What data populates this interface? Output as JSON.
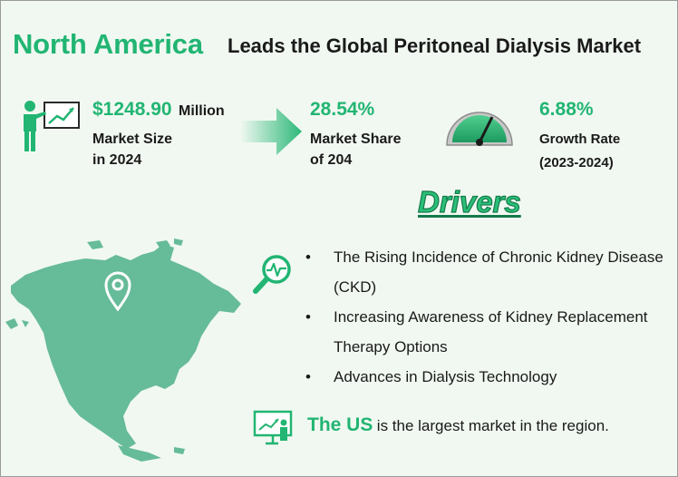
{
  "title": {
    "highlight": "North America",
    "rest": "Leads the Global Peritoneal Dialysis Market"
  },
  "stats": {
    "market_size": {
      "value": "$1248.90",
      "unit": "Million",
      "label_line1": "Market Size",
      "label_line2": "in 2024"
    },
    "market_share": {
      "value": "28.54%",
      "label_line1": "Market Share",
      "label_line2": "of 204"
    },
    "growth_rate": {
      "value": "6.88%",
      "label_line1": "Growth Rate",
      "label_line2": "(2023-2024)"
    }
  },
  "drivers": {
    "heading": "Drivers",
    "items": [
      {
        "line1": "The Rising Incidence of Chronic Kidney Disease",
        "line2": "(CKD)"
      },
      {
        "line1": "Increasing Awareness of Kidney Replacement",
        "line2": "Therapy Options"
      },
      {
        "line1": "Advances in Dialysis Technology",
        "line2": ""
      }
    ]
  },
  "footer": {
    "highlight": "The US",
    "rest": "is the largest market in the region."
  },
  "icons": {
    "presenter": "presenter-chart-icon",
    "arrow": "arrow-right-icon",
    "gauge": "gauge-icon",
    "magnifier": "magnifier-pulse-icon",
    "map": "north-america-map",
    "pin": "location-pin-icon",
    "board": "chart-board-icon"
  },
  "colors": {
    "accent": "#22b573",
    "map": "#66bb99",
    "text": "#1a1a1a",
    "background": "#f1f8f1"
  }
}
